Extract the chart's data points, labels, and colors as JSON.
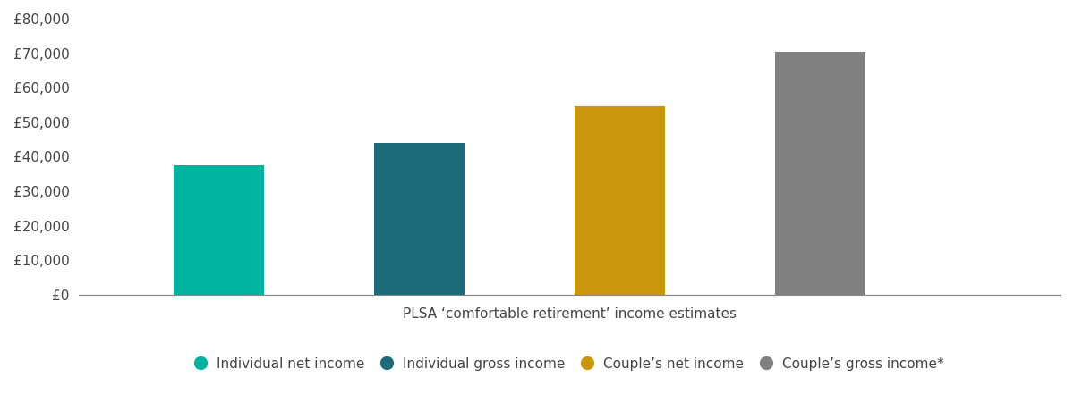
{
  "categories": [
    "Individual net income",
    "Individual gross income",
    "Couple’s net income",
    "Couple’s gross income*"
  ],
  "values": [
    37500,
    44000,
    54500,
    70500
  ],
  "bar_colors": [
    "#00B2A0",
    "#1B6B7B",
    "#C9960C",
    "#808080"
  ],
  "xlabel": "PLSA ‘comfortable retirement’ income estimates",
  "ylim": [
    0,
    80000
  ],
  "yticks": [
    0,
    10000,
    20000,
    30000,
    40000,
    50000,
    60000,
    70000,
    80000
  ],
  "ytick_labels": [
    "£0",
    "£10,000",
    "£20,000",
    "£30,000",
    "£40,000",
    "£50,000",
    "£60,000",
    "£70,000",
    "£80,000"
  ],
  "legend_labels": [
    "Individual net income",
    "Individual gross income",
    "Couple’s net income",
    "Couple’s gross income*"
  ],
  "background_color": "#ffffff",
  "bar_width": 0.45,
  "x_positions": [
    1,
    2,
    3,
    4
  ],
  "xlim": [
    0.3,
    5.2
  ]
}
